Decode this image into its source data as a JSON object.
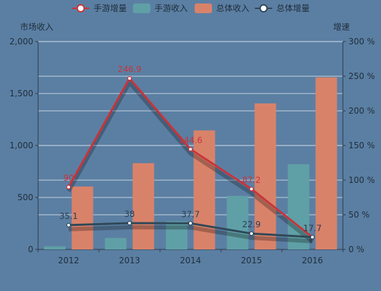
{
  "chart_data": {
    "type": "bar",
    "categories": [
      "2012",
      "2013",
      "2014",
      "2015",
      "2016"
    ],
    "y_left": {
      "label": "市场收入",
      "ylim": [
        0,
        2000
      ],
      "ticks": [
        0,
        500,
        1000,
        1500,
        2000
      ],
      "tick_labels": [
        "0",
        "500",
        "1,000",
        "1,500",
        "2,000"
      ]
    },
    "y_right": {
      "label": "增速",
      "ylim": [
        0,
        300
      ],
      "ticks": [
        0,
        50,
        100,
        150,
        200,
        250,
        300
      ],
      "tick_labels": [
        "0 %",
        "50 %",
        "100 %",
        "150 %",
        "200 %",
        "250 %",
        "300 %"
      ]
    },
    "legend_position": "top-center",
    "grid": true,
    "series": [
      {
        "name": "手游增量",
        "type": "line",
        "axis": "right",
        "color": "#c8343a",
        "values": [
          90,
          246.9,
          144.6,
          87.2,
          17.7
        ],
        "labels": [
          "90",
          "246.9",
          "144.6",
          "87.2",
          "17.7"
        ]
      },
      {
        "name": "手游收入",
        "type": "bar",
        "axis": "left",
        "color": "#5fa0a6",
        "values": [
          30,
          110,
          270,
          515,
          820
        ]
      },
      {
        "name": "总体收入",
        "type": "bar",
        "axis": "left",
        "color": "#d9826a",
        "values": [
          605,
          830,
          1145,
          1405,
          1655
        ]
      },
      {
        "name": "总体增量",
        "type": "line",
        "axis": "right",
        "color": "#2f4858",
        "values": [
          35.1,
          38,
          37.7,
          22.9,
          17.7
        ],
        "labels": [
          "35.1",
          "38",
          "37.7",
          "22.9",
          "17.7"
        ]
      }
    ]
  }
}
